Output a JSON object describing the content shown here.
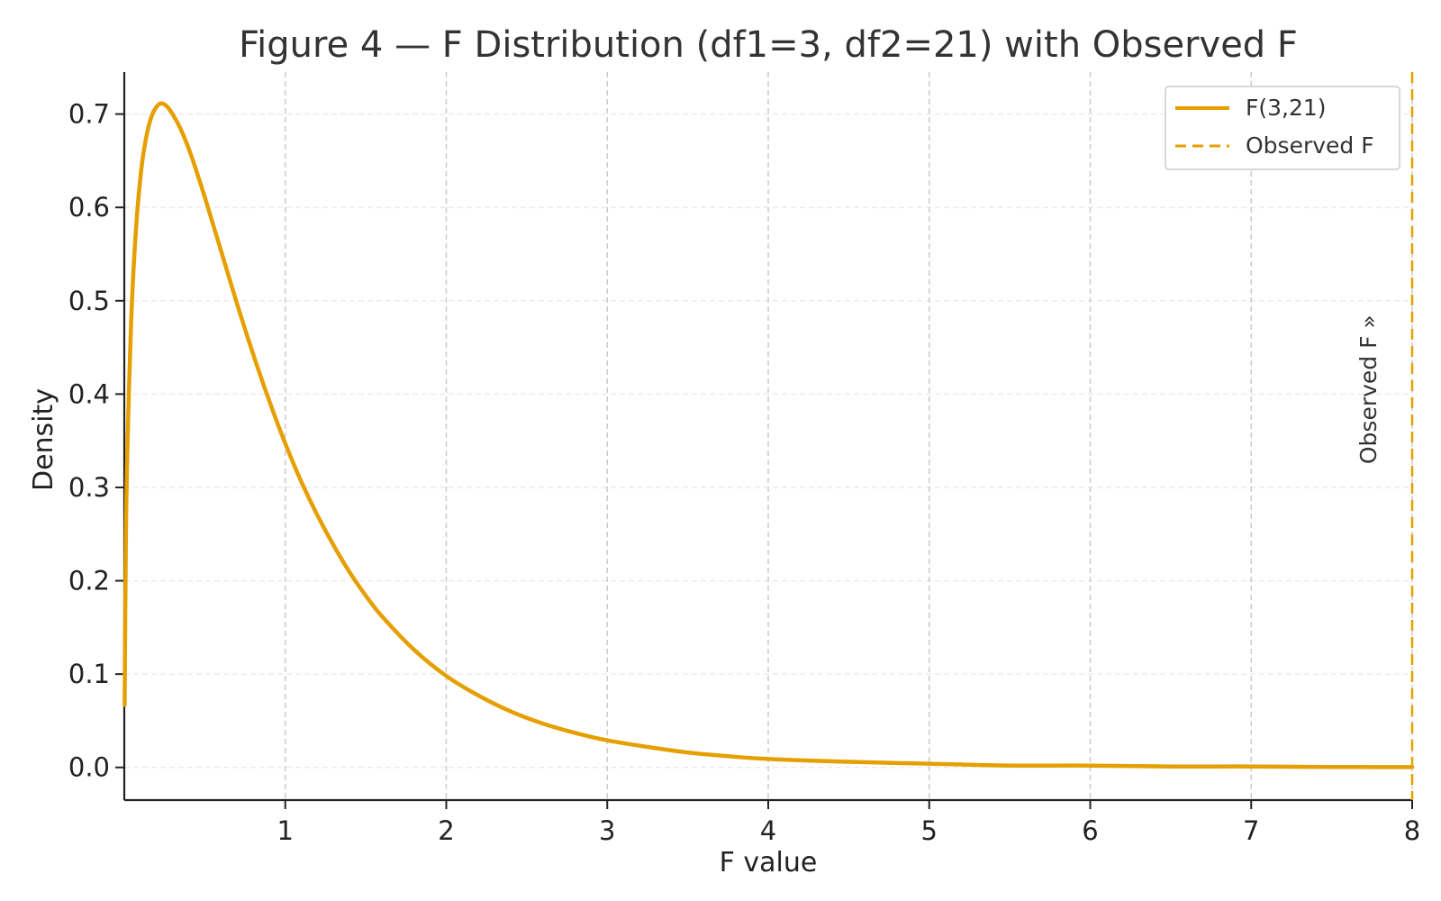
{
  "colors": {
    "accent": "#E69F00",
    "grid_vertical": "#c8c8c8",
    "grid_horizontal": "#ececec",
    "axis": "#222222"
  },
  "chart_data": {
    "type": "line",
    "title": "Figure 4 — F Distribution (df1=3, df2=21) with Observed F",
    "xlabel": "F value",
    "ylabel": "Density",
    "xlim": [
      0,
      8
    ],
    "ylim": [
      -0.035,
      0.745
    ],
    "x_ticks": [
      1,
      2,
      3,
      4,
      5,
      6,
      7,
      8
    ],
    "x_tick_labels": [
      "1",
      "2",
      "3",
      "4",
      "5",
      "6",
      "7",
      "8"
    ],
    "y_ticks": [
      0.0,
      0.1,
      0.2,
      0.3,
      0.4,
      0.5,
      0.6,
      0.7
    ],
    "y_tick_labels": [
      "0.0",
      "0.1",
      "0.2",
      "0.3",
      "0.4",
      "0.5",
      "0.6",
      "0.7"
    ],
    "grid": true,
    "legend_position": "top-right",
    "series": [
      {
        "name": "F(3,21)",
        "style": "solid",
        "x": [
          0.002,
          0.01,
          0.02,
          0.04,
          0.06,
          0.08,
          0.1,
          0.12,
          0.15,
          0.18,
          0.22,
          0.26,
          0.3,
          0.35,
          0.4,
          0.45,
          0.5,
          0.6,
          0.7,
          0.8,
          0.9,
          1.0,
          1.1,
          1.2,
          1.3,
          1.4,
          1.5,
          1.6,
          1.8,
          2.0,
          2.2,
          2.4,
          2.6,
          2.8,
          3.0,
          3.25,
          3.5,
          3.75,
          4.0,
          4.5,
          5.0,
          5.5,
          6.0,
          6.5,
          7.0,
          7.5,
          8.0
        ],
        "y": [
          0.067,
          0.248,
          0.347,
          0.466,
          0.541,
          0.594,
          0.632,
          0.659,
          0.686,
          0.702,
          0.711,
          0.709,
          0.7,
          0.684,
          0.663,
          0.638,
          0.611,
          0.554,
          0.497,
          0.443,
          0.393,
          0.347,
          0.306,
          0.27,
          0.238,
          0.209,
          0.184,
          0.162,
          0.126,
          0.098,
          0.077,
          0.06,
          0.047,
          0.037,
          0.029,
          0.022,
          0.016,
          0.012,
          0.009,
          0.006,
          0.004,
          0.002,
          0.002,
          0.001,
          0.001,
          0.0005,
          0.0003
        ]
      },
      {
        "name": "Observed F",
        "style": "dashed",
        "x_value": 8.0
      }
    ],
    "annotations": [
      {
        "text": "Observed F »",
        "x": 8.0,
        "rotation": "vertical"
      }
    ]
  }
}
